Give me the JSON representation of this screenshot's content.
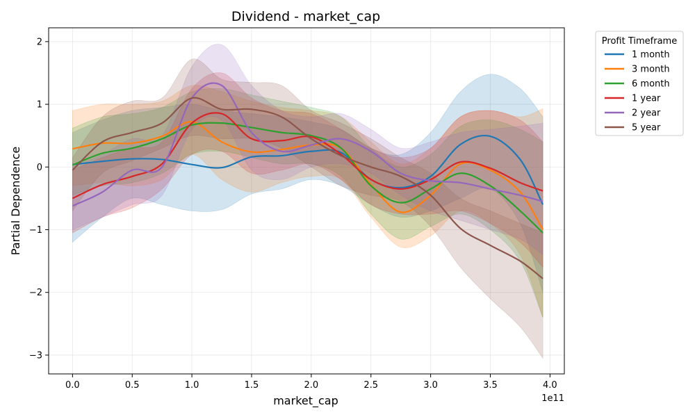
{
  "chart_data": {
    "type": "line",
    "title": "Dividend - market_cap",
    "xlabel": "market_cap",
    "ylabel": "Partial Dependence",
    "x_offset_label": "1e11",
    "x_unit_note": "market_cap values expressed in units of 1e11",
    "xlim": [
      -0.2,
      4.12
    ],
    "ylim": [
      -3.3,
      2.22
    ],
    "x_ticks": [
      0.0,
      0.5,
      1.0,
      1.5,
      2.0,
      2.5,
      3.0,
      3.5,
      4.0
    ],
    "x_tick_labels": [
      "0.0",
      "0.5",
      "1.0",
      "1.5",
      "2.0",
      "2.5",
      "3.0",
      "3.5",
      "4.0"
    ],
    "y_ticks": [
      2,
      1,
      0,
      -1,
      -2,
      -3
    ],
    "y_tick_labels": [
      "2",
      "1",
      "0",
      "−1",
      "−2",
      "−3"
    ],
    "grid": true,
    "legend": {
      "title": "Profit Timeframe",
      "placement": "outside-top-right"
    },
    "x": [
      0.0,
      0.25,
      0.5,
      0.75,
      1.0,
      1.25,
      1.5,
      1.75,
      2.0,
      2.25,
      2.5,
      2.75,
      3.0,
      3.25,
      3.5,
      3.75,
      3.94
    ],
    "series": [
      {
        "name": "1 month",
        "color": "#1f77b4",
        "values": [
          0.04,
          0.09,
          0.13,
          0.12,
          0.04,
          -0.01,
          0.16,
          0.18,
          0.25,
          0.23,
          -0.2,
          -0.33,
          -0.15,
          0.36,
          0.49,
          0.12,
          -0.6
        ],
        "upper": [
          0.55,
          0.75,
          0.9,
          0.95,
          1.0,
          0.9,
          0.85,
          0.8,
          0.72,
          0.6,
          0.3,
          0.2,
          0.55,
          1.2,
          1.48,
          1.25,
          0.8
        ],
        "lower": [
          -1.2,
          -0.8,
          -0.5,
          -0.6,
          -0.7,
          -0.68,
          -0.43,
          -0.35,
          -0.2,
          -0.3,
          -0.6,
          -0.8,
          -0.7,
          -0.5,
          -0.35,
          -0.9,
          -2.0
        ]
      },
      {
        "name": "3 month",
        "color": "#ff7f0e",
        "values": [
          0.29,
          0.38,
          0.38,
          0.49,
          0.72,
          0.4,
          0.24,
          0.28,
          0.35,
          0.3,
          -0.28,
          -0.72,
          -0.45,
          0.05,
          -0.05,
          -0.4,
          -1.0
        ],
        "upper": [
          0.9,
          1.0,
          1.0,
          1.05,
          1.3,
          1.2,
          1.05,
          0.95,
          0.9,
          0.8,
          0.4,
          0.05,
          0.3,
          0.8,
          0.9,
          0.8,
          0.93
        ],
        "lower": [
          -0.3,
          -0.25,
          -0.3,
          -0.2,
          0.2,
          -0.2,
          -0.4,
          -0.25,
          -0.15,
          -0.2,
          -0.8,
          -1.28,
          -1.1,
          -0.7,
          -0.9,
          -1.4,
          -2.4
        ]
      },
      {
        "name": "6 month",
        "color": "#2ca02c",
        "values": [
          0.03,
          0.22,
          0.3,
          0.45,
          0.67,
          0.7,
          0.63,
          0.55,
          0.5,
          0.3,
          -0.3,
          -0.57,
          -0.35,
          -0.1,
          -0.3,
          -0.7,
          -1.05
        ],
        "upper": [
          0.62,
          0.8,
          0.85,
          0.95,
          1.2,
          1.25,
          1.15,
          1.05,
          0.95,
          0.8,
          0.3,
          0.0,
          0.2,
          0.65,
          0.75,
          0.6,
          0.4
        ],
        "lower": [
          -0.45,
          -0.3,
          -0.25,
          -0.1,
          0.2,
          0.25,
          0.15,
          0.05,
          0.05,
          -0.15,
          -0.75,
          -1.15,
          -0.95,
          -0.75,
          -1.0,
          -1.5,
          -2.4
        ]
      },
      {
        "name": "1 year",
        "color": "#d62728",
        "values": [
          -0.5,
          -0.28,
          -0.15,
          0.05,
          0.7,
          0.85,
          0.45,
          0.42,
          0.48,
          0.2,
          -0.2,
          -0.35,
          -0.2,
          0.08,
          -0.02,
          -0.25,
          -0.38
        ],
        "upper": [
          -0.05,
          0.15,
          0.3,
          0.4,
          1.25,
          1.5,
          1.1,
          0.9,
          0.85,
          0.6,
          0.3,
          0.15,
          0.3,
          0.8,
          0.9,
          0.75,
          0.4
        ],
        "lower": [
          -1.05,
          -0.8,
          -0.65,
          -0.35,
          0.2,
          0.25,
          -0.1,
          -0.05,
          0.05,
          -0.2,
          -0.6,
          -0.75,
          -0.75,
          -0.7,
          -0.9,
          -1.2,
          -1.6
        ]
      },
      {
        "name": "2 year",
        "color": "#9467bd",
        "values": [
          -0.62,
          -0.4,
          -0.05,
          0.0,
          1.1,
          1.3,
          0.55,
          0.25,
          0.35,
          0.45,
          0.25,
          -0.1,
          -0.22,
          -0.25,
          -0.35,
          -0.45,
          -0.55
        ],
        "upper": [
          0.0,
          0.2,
          0.45,
          0.5,
          1.6,
          1.95,
          1.3,
          0.9,
          0.8,
          0.85,
          0.6,
          0.3,
          0.4,
          0.55,
          0.6,
          0.65,
          0.7
        ],
        "lower": [
          -1.0,
          -0.8,
          -0.6,
          -0.45,
          0.6,
          0.75,
          -0.05,
          -0.2,
          0.0,
          0.05,
          -0.1,
          -0.45,
          -0.7,
          -0.85,
          -1.0,
          -1.15,
          -1.4
        ]
      },
      {
        "name": "5 year",
        "color": "#8c564b",
        "values": [
          -0.05,
          0.4,
          0.55,
          0.7,
          1.1,
          0.92,
          0.92,
          0.8,
          0.45,
          0.18,
          0.0,
          -0.15,
          -0.45,
          -0.98,
          -1.25,
          -1.5,
          -1.78
        ],
        "upper": [
          0.15,
          0.8,
          1.05,
          1.1,
          1.72,
          1.4,
          1.35,
          1.3,
          0.9,
          0.7,
          0.45,
          0.15,
          -0.1,
          -0.5,
          -0.7,
          -0.9,
          -1.05
        ],
        "lower": [
          -0.7,
          -0.1,
          0.1,
          0.3,
          0.5,
          0.45,
          0.45,
          0.3,
          0.0,
          -0.3,
          -0.45,
          -0.55,
          -0.95,
          -1.6,
          -2.1,
          -2.55,
          -3.05
        ]
      }
    ]
  }
}
